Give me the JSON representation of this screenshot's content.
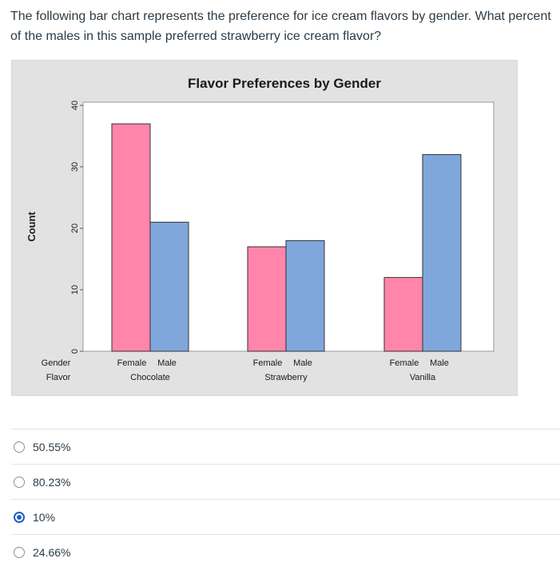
{
  "question": "The following bar chart represents the preference for ice cream flavors by gender.  What percent of the males in this sample preferred strawberry ice cream flavor?",
  "chart_data": {
    "type": "bar",
    "title": "Flavor Preferences by Gender",
    "ylabel": "Count",
    "ylim": [
      0,
      40
    ],
    "yticks": [
      0,
      10,
      20,
      30,
      40
    ],
    "row_labels": [
      "Gender",
      "Flavor"
    ],
    "groups": [
      {
        "flavor": "Chocolate",
        "bars": [
          {
            "gender": "Female",
            "value": 37
          },
          {
            "gender": "Male",
            "value": 21
          }
        ]
      },
      {
        "flavor": "Strawberry",
        "bars": [
          {
            "gender": "Female",
            "value": 17
          },
          {
            "gender": "Male",
            "value": 18
          }
        ]
      },
      {
        "flavor": "Vanilla",
        "bars": [
          {
            "gender": "Female",
            "value": 12
          },
          {
            "gender": "Male",
            "value": 32
          }
        ]
      }
    ],
    "colors": {
      "Female": "#ff85ab",
      "Male": "#7fa7dc",
      "panel": "#e2e2e2",
      "plot": "#ffffff"
    },
    "grid": false
  },
  "answers": [
    {
      "label": "50.55%",
      "selected": false
    },
    {
      "label": "80.23%",
      "selected": false
    },
    {
      "label": "10%",
      "selected": true
    },
    {
      "label": "24.66%",
      "selected": false
    }
  ]
}
